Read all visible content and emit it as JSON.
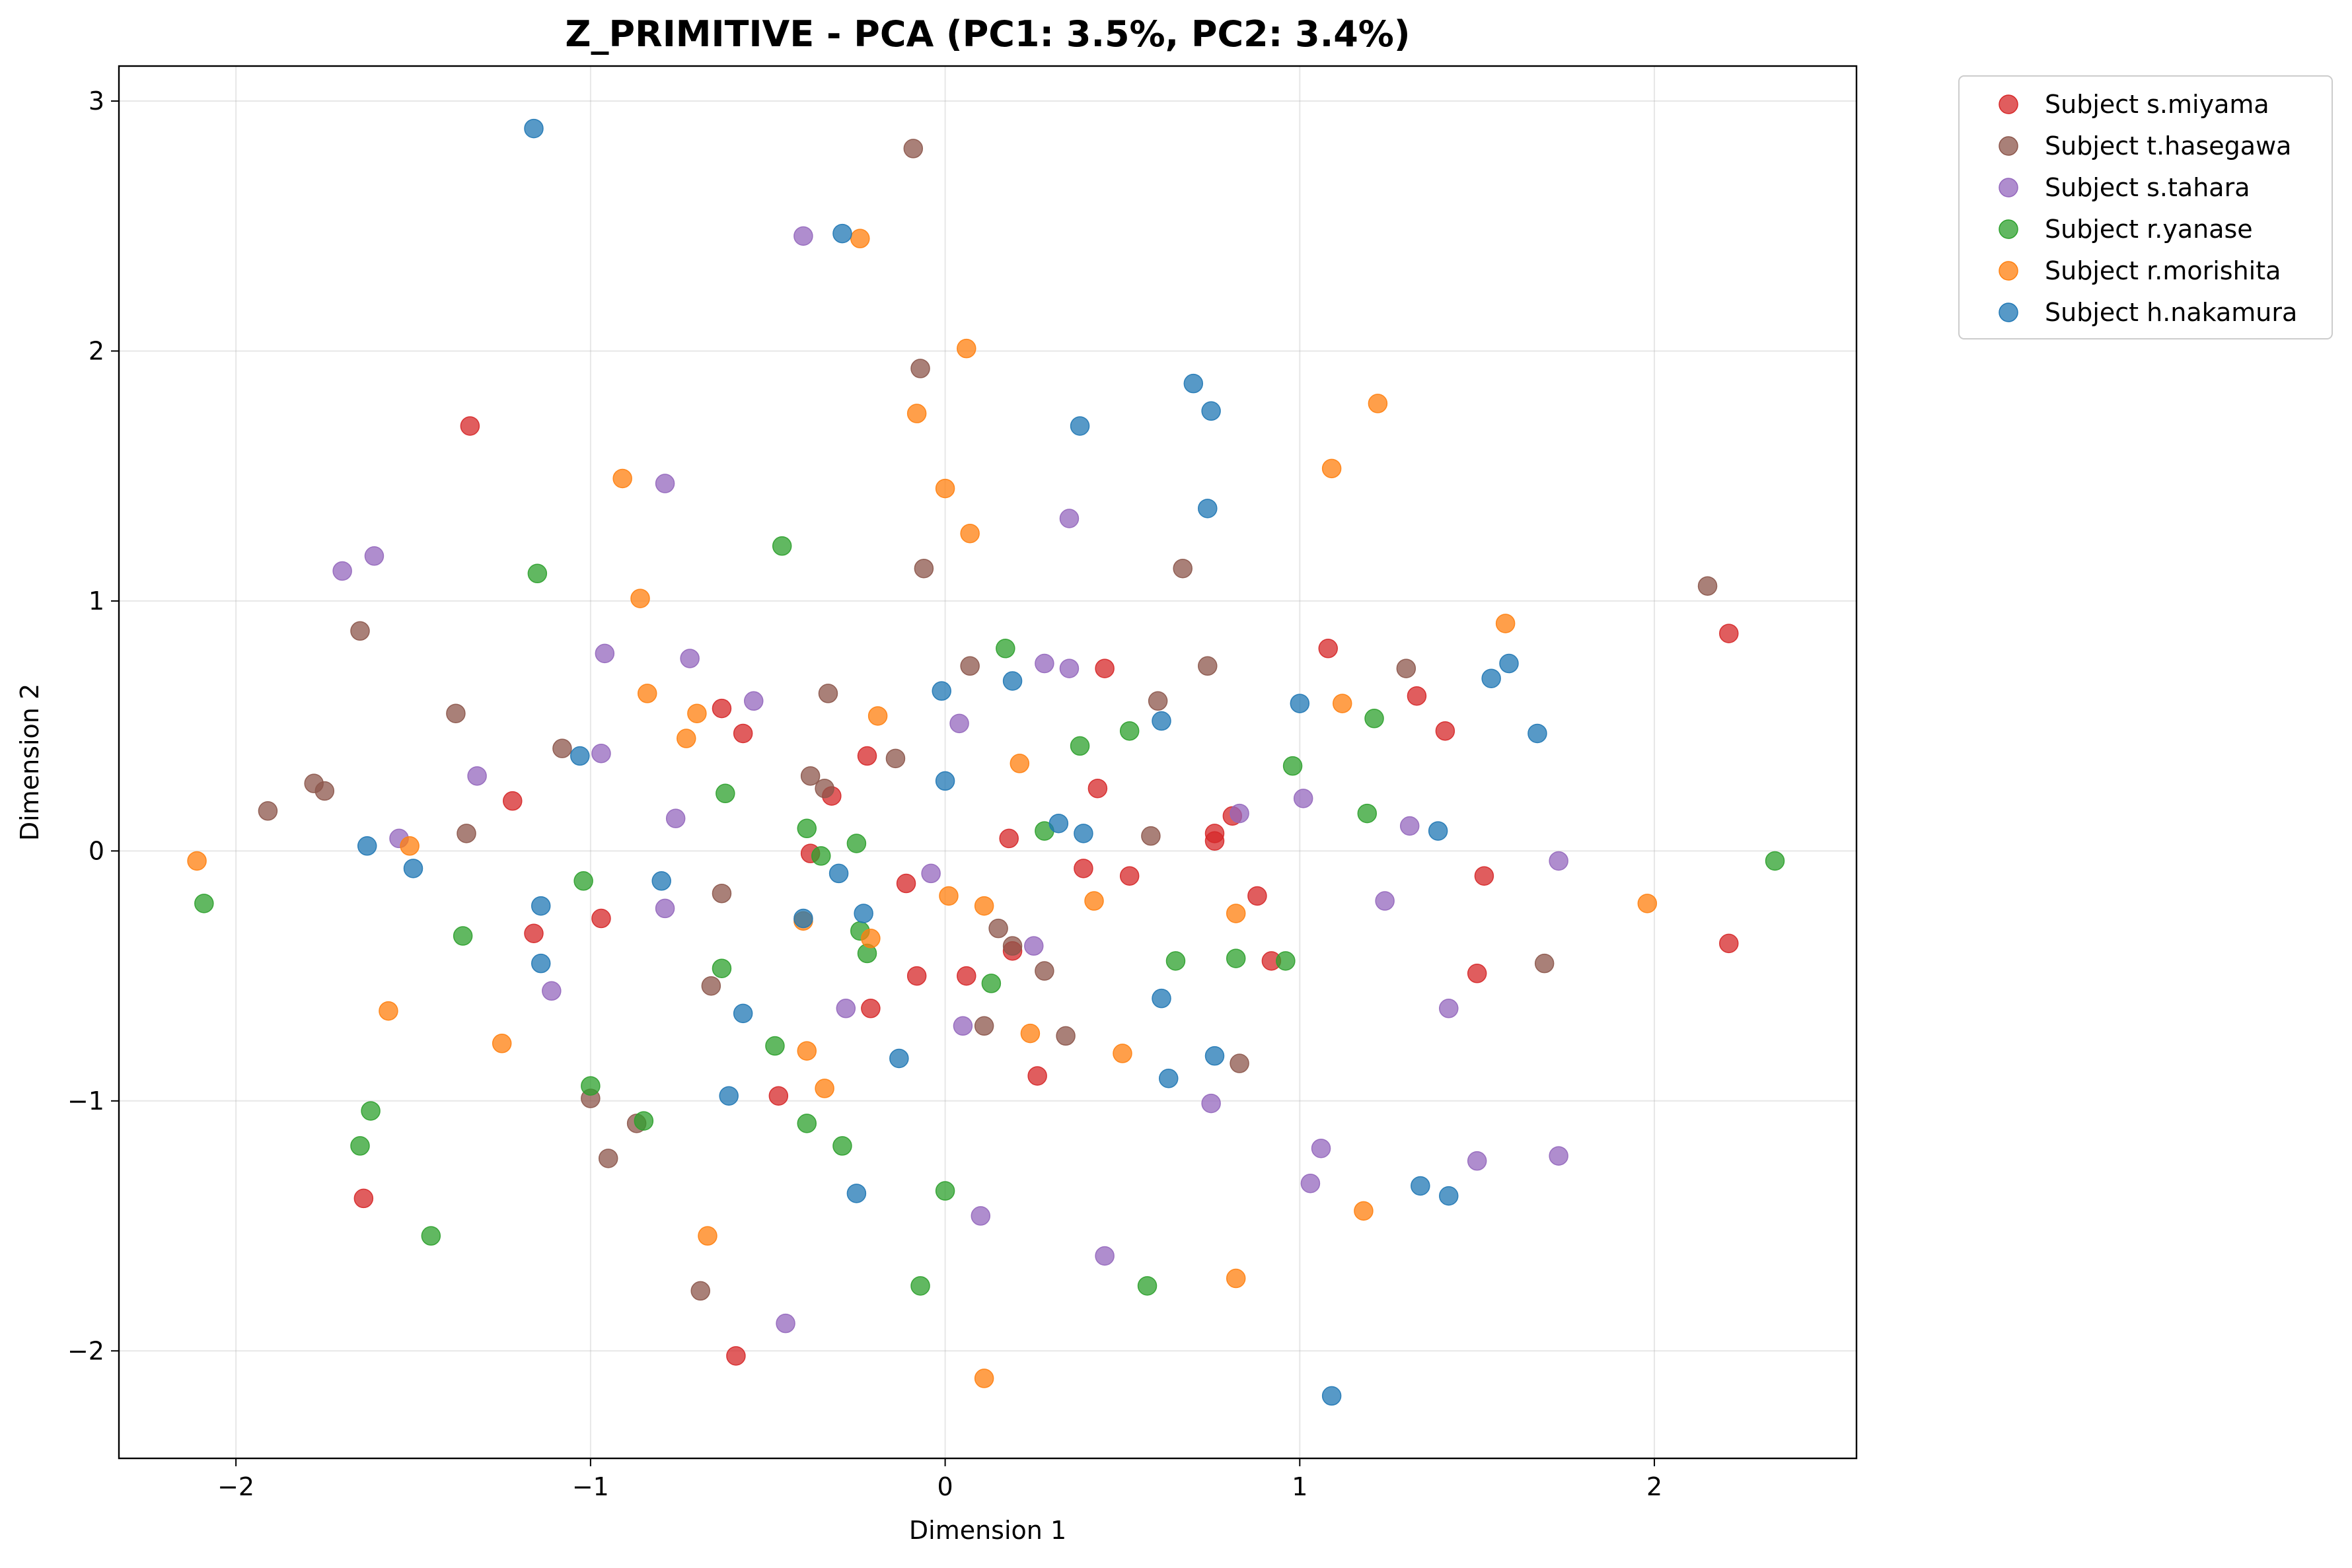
{
  "chart_data": {
    "type": "scatter",
    "title": "Z_PRIMITIVE - PCA (PC1: 3.5%, PC2: 3.4%)",
    "xlabel": "Dimension 1",
    "ylabel": "Dimension 2",
    "xlim": [
      -2.33,
      2.57
    ],
    "ylim": [
      -2.43,
      3.14
    ],
    "xticks": [
      -2,
      -1,
      0,
      1,
      2
    ],
    "yticks": [
      -2,
      -1,
      0,
      1,
      2,
      3
    ],
    "xtick_labels": [
      "−2",
      "−1",
      "0",
      "1",
      "2"
    ],
    "ytick_labels": [
      "−2",
      "−1",
      "0",
      "1",
      "2",
      "3"
    ],
    "grid": true,
    "legend_position": "outside-top-right",
    "series": [
      {
        "name": "Subject s.miyama",
        "color": "#d62728",
        "points": [
          [
            -1.34,
            1.7
          ],
          [
            -1.22,
            0.2
          ],
          [
            -1.16,
            -0.33
          ],
          [
            -0.97,
            -0.27
          ],
          [
            -0.63,
            0.57
          ],
          [
            -0.57,
            0.47
          ],
          [
            -0.38,
            -0.01
          ],
          [
            -0.32,
            0.22
          ],
          [
            -0.22,
            0.38
          ],
          [
            -0.21,
            -0.63
          ],
          [
            -0.11,
            -0.13
          ],
          [
            -0.08,
            -0.5
          ],
          [
            0.06,
            -0.5
          ],
          [
            0.18,
            0.05
          ],
          [
            0.19,
            -0.4
          ],
          [
            0.26,
            -0.9
          ],
          [
            0.39,
            -0.07
          ],
          [
            0.43,
            0.25
          ],
          [
            0.45,
            0.73
          ],
          [
            0.52,
            -0.1
          ],
          [
            0.76,
            0.07
          ],
          [
            0.76,
            0.04
          ],
          [
            0.81,
            0.14
          ],
          [
            0.88,
            -0.18
          ],
          [
            0.92,
            -0.44
          ],
          [
            1.08,
            0.81
          ],
          [
            1.33,
            0.62
          ],
          [
            1.41,
            0.48
          ],
          [
            1.5,
            -0.49
          ],
          [
            1.52,
            -0.1
          ],
          [
            2.21,
            0.87
          ],
          [
            2.21,
            -0.37
          ],
          [
            -1.64,
            -1.39
          ],
          [
            -0.47,
            -0.98
          ],
          [
            -0.59,
            -2.02
          ]
        ]
      },
      {
        "name": "Subject t.hasegawa",
        "color": "#8c564b",
        "points": [
          [
            -1.91,
            0.16
          ],
          [
            -1.78,
            0.27
          ],
          [
            -1.75,
            0.24
          ],
          [
            -1.65,
            0.88
          ],
          [
            -1.38,
            0.55
          ],
          [
            -1.35,
            0.07
          ],
          [
            -1.08,
            0.41
          ],
          [
            -1.0,
            -0.99
          ],
          [
            -0.95,
            -1.23
          ],
          [
            -0.87,
            -1.09
          ],
          [
            -0.69,
            -1.76
          ],
          [
            -0.66,
            -0.54
          ],
          [
            -0.63,
            -0.17
          ],
          [
            -0.38,
            0.3
          ],
          [
            -0.34,
            0.25
          ],
          [
            -0.33,
            0.63
          ],
          [
            -0.14,
            0.37
          ],
          [
            -0.09,
            2.81
          ],
          [
            -0.07,
            1.93
          ],
          [
            -0.06,
            1.13
          ],
          [
            0.07,
            0.74
          ],
          [
            0.11,
            -0.7
          ],
          [
            0.15,
            -0.31
          ],
          [
            0.19,
            -0.38
          ],
          [
            0.28,
            -0.48
          ],
          [
            0.34,
            -0.74
          ],
          [
            0.58,
            0.06
          ],
          [
            0.6,
            0.6
          ],
          [
            0.67,
            1.13
          ],
          [
            0.74,
            0.74
          ],
          [
            0.83,
            -0.85
          ],
          [
            1.3,
            0.73
          ],
          [
            1.69,
            -0.45
          ],
          [
            2.15,
            1.06
          ]
        ]
      },
      {
        "name": "Subject s.tahara",
        "color": "#9467bd",
        "points": [
          [
            -1.7,
            1.12
          ],
          [
            -1.61,
            1.18
          ],
          [
            -1.54,
            0.05
          ],
          [
            -1.32,
            0.3
          ],
          [
            -1.11,
            -0.56
          ],
          [
            -0.96,
            0.79
          ],
          [
            -0.97,
            0.39
          ],
          [
            -0.79,
            1.47
          ],
          [
            -0.79,
            -0.23
          ],
          [
            -0.76,
            0.13
          ],
          [
            -0.72,
            0.77
          ],
          [
            -0.54,
            0.6
          ],
          [
            -0.4,
            2.46
          ],
          [
            -0.28,
            -0.63
          ],
          [
            -0.04,
            -0.09
          ],
          [
            0.04,
            0.51
          ],
          [
            0.05,
            -0.7
          ],
          [
            0.1,
            -1.46
          ],
          [
            0.25,
            -0.38
          ],
          [
            0.28,
            0.75
          ],
          [
            0.35,
            0.73
          ],
          [
            0.35,
            1.33
          ],
          [
            0.45,
            -1.62
          ],
          [
            0.75,
            -1.01
          ],
          [
            0.83,
            0.15
          ],
          [
            1.01,
            0.21
          ],
          [
            1.03,
            -1.33
          ],
          [
            1.06,
            -1.19
          ],
          [
            1.24,
            -0.2
          ],
          [
            1.31,
            0.1
          ],
          [
            1.42,
            -0.63
          ],
          [
            1.5,
            -1.24
          ],
          [
            1.73,
            -0.04
          ],
          [
            1.73,
            -1.22
          ],
          [
            -0.45,
            -1.89
          ]
        ]
      },
      {
        "name": "Subject r.yanase",
        "color": "#2ca02c",
        "points": [
          [
            -2.09,
            -0.21
          ],
          [
            -1.65,
            -1.18
          ],
          [
            -1.62,
            -1.04
          ],
          [
            -1.45,
            -1.54
          ],
          [
            -1.36,
            -0.34
          ],
          [
            -1.15,
            1.11
          ],
          [
            -1.02,
            -0.12
          ],
          [
            -1.0,
            -0.94
          ],
          [
            -0.85,
            -1.08
          ],
          [
            -0.62,
            0.23
          ],
          [
            -0.63,
            -0.47
          ],
          [
            -0.48,
            -0.78
          ],
          [
            -0.46,
            1.22
          ],
          [
            -0.39,
            0.09
          ],
          [
            -0.39,
            -1.09
          ],
          [
            -0.35,
            -0.02
          ],
          [
            -0.29,
            -1.18
          ],
          [
            -0.25,
            0.03
          ],
          [
            -0.24,
            -0.32
          ],
          [
            -0.22,
            -0.41
          ],
          [
            -0.07,
            -1.74
          ],
          [
            0.0,
            -1.36
          ],
          [
            0.13,
            -0.53
          ],
          [
            0.17,
            0.81
          ],
          [
            0.28,
            0.08
          ],
          [
            0.38,
            0.42
          ],
          [
            0.52,
            0.48
          ],
          [
            0.57,
            -1.74
          ],
          [
            0.65,
            -0.44
          ],
          [
            0.82,
            -0.43
          ],
          [
            0.96,
            -0.44
          ],
          [
            0.98,
            0.34
          ],
          [
            1.19,
            0.15
          ],
          [
            1.21,
            0.53
          ],
          [
            2.34,
            -0.04
          ]
        ]
      },
      {
        "name": "Subject r.morishita",
        "color": "#ff7f0e",
        "points": [
          [
            -2.11,
            -0.04
          ],
          [
            -1.57,
            -0.64
          ],
          [
            -1.51,
            0.02
          ],
          [
            -1.25,
            -0.77
          ],
          [
            -0.91,
            1.49
          ],
          [
            -0.86,
            1.01
          ],
          [
            -0.84,
            0.63
          ],
          [
            -0.73,
            0.45
          ],
          [
            -0.7,
            0.55
          ],
          [
            -0.67,
            -1.54
          ],
          [
            -0.4,
            -0.28
          ],
          [
            -0.39,
            -0.8
          ],
          [
            -0.34,
            -0.95
          ],
          [
            -0.24,
            2.45
          ],
          [
            -0.21,
            -0.35
          ],
          [
            -0.19,
            0.54
          ],
          [
            -0.08,
            1.75
          ],
          [
            0.0,
            1.45
          ],
          [
            0.01,
            -0.18
          ],
          [
            0.06,
            2.01
          ],
          [
            0.07,
            1.27
          ],
          [
            0.11,
            -0.22
          ],
          [
            0.11,
            -2.11
          ],
          [
            0.21,
            0.35
          ],
          [
            0.24,
            -0.73
          ],
          [
            0.42,
            -0.2
          ],
          [
            0.5,
            -0.81
          ],
          [
            0.82,
            -0.25
          ],
          [
            0.82,
            -1.71
          ],
          [
            1.09,
            1.53
          ],
          [
            1.12,
            0.59
          ],
          [
            1.18,
            -1.44
          ],
          [
            1.22,
            1.79
          ],
          [
            1.58,
            0.91
          ],
          [
            1.98,
            -0.21
          ]
        ]
      },
      {
        "name": "Subject h.nakamura",
        "color": "#1f77b4",
        "points": [
          [
            -1.63,
            0.02
          ],
          [
            -1.5,
            -0.07
          ],
          [
            -1.16,
            2.89
          ],
          [
            -1.14,
            -0.22
          ],
          [
            -1.14,
            -0.45
          ],
          [
            -1.03,
            0.38
          ],
          [
            -0.8,
            -0.12
          ],
          [
            -0.61,
            -0.98
          ],
          [
            -0.57,
            -0.65
          ],
          [
            -0.3,
            -0.09
          ],
          [
            -0.29,
            2.47
          ],
          [
            -0.25,
            -1.37
          ],
          [
            -0.23,
            -0.25
          ],
          [
            -0.13,
            -0.83
          ],
          [
            -0.01,
            0.64
          ],
          [
            0.0,
            0.28
          ],
          [
            0.19,
            0.68
          ],
          [
            0.32,
            0.11
          ],
          [
            0.38,
            1.7
          ],
          [
            0.39,
            0.07
          ],
          [
            0.61,
            0.52
          ],
          [
            0.61,
            -0.59
          ],
          [
            0.63,
            -0.91
          ],
          [
            0.7,
            1.87
          ],
          [
            0.74,
            1.37
          ],
          [
            0.75,
            1.76
          ],
          [
            0.76,
            -0.82
          ],
          [
            1.0,
            0.59
          ],
          [
            1.09,
            -2.18
          ],
          [
            1.34,
            -1.34
          ],
          [
            1.39,
            0.08
          ],
          [
            1.42,
            -1.38
          ],
          [
            1.54,
            0.69
          ],
          [
            1.59,
            0.75
          ],
          [
            1.67,
            0.47
          ],
          [
            -0.4,
            -0.27
          ]
        ]
      }
    ]
  }
}
